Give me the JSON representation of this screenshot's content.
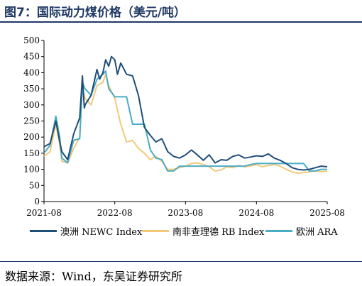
{
  "figure": {
    "title": "图7：国际动力煤价格（美元/吨）",
    "source": "数据来源：Wind，东吴证券研究所"
  },
  "chart_data": {
    "type": "line",
    "x_ticks": [
      "2021-08",
      "2022-08",
      "2023-08",
      "2024-08",
      "2025-08"
    ],
    "y_ticks": [
      0,
      50,
      100,
      150,
      200,
      250,
      300,
      350,
      400,
      450,
      500
    ],
    "ylim": [
      0,
      500
    ],
    "xlim": [
      "2021-08",
      "2025-08"
    ],
    "grid": false,
    "legend_position": "bottom",
    "series": [
      {
        "name": "澳洲 NEWC Index",
        "color": "#1f4e79",
        "points": [
          [
            "2021-08",
            170
          ],
          [
            "2021-09",
            180
          ],
          [
            "2021-10",
            250
          ],
          [
            "2021-10-20",
            190
          ],
          [
            "2021-11",
            155
          ],
          [
            "2021-12",
            130
          ],
          [
            "2022-01",
            210
          ],
          [
            "2022-02",
            260
          ],
          [
            "2022-02-15",
            390
          ],
          [
            "2022-02-25",
            290
          ],
          [
            "2022-03",
            300
          ],
          [
            "2022-04",
            330
          ],
          [
            "2022-05",
            410
          ],
          [
            "2022-05-15",
            380
          ],
          [
            "2022-06",
            400
          ],
          [
            "2022-06-15",
            440
          ],
          [
            "2022-07",
            420
          ],
          [
            "2022-07-15",
            450
          ],
          [
            "2022-08",
            440
          ],
          [
            "2022-08-15",
            395
          ],
          [
            "2022-09",
            430
          ],
          [
            "2022-10",
            395
          ],
          [
            "2022-11",
            390
          ],
          [
            "2022-12",
            330
          ],
          [
            "2023-01",
            230
          ],
          [
            "2023-02",
            205
          ],
          [
            "2023-03",
            185
          ],
          [
            "2023-04",
            195
          ],
          [
            "2023-05",
            155
          ],
          [
            "2023-06",
            140
          ],
          [
            "2023-07",
            135
          ],
          [
            "2023-08",
            145
          ],
          [
            "2023-09",
            160
          ],
          [
            "2023-10",
            145
          ],
          [
            "2023-11",
            128
          ],
          [
            "2023-12",
            145
          ],
          [
            "2024-01",
            120
          ],
          [
            "2024-02",
            130
          ],
          [
            "2024-03",
            128
          ],
          [
            "2024-04",
            140
          ],
          [
            "2024-05",
            145
          ],
          [
            "2024-06",
            135
          ],
          [
            "2024-07",
            138
          ],
          [
            "2024-08",
            142
          ],
          [
            "2024-09",
            140
          ],
          [
            "2024-10",
            148
          ],
          [
            "2024-11",
            135
          ],
          [
            "2024-12",
            128
          ],
          [
            "2025-01",
            118
          ],
          [
            "2025-02",
            105
          ],
          [
            "2025-03",
            100
          ],
          [
            "2025-04",
            98
          ],
          [
            "2025-05",
            100
          ],
          [
            "2025-06",
            105
          ],
          [
            "2025-07",
            110
          ],
          [
            "2025-08",
            108
          ]
        ]
      },
      {
        "name": "南非查理德 RB Index",
        "color": "#f2c97a",
        "points": [
          [
            "2021-08",
            140
          ],
          [
            "2021-09",
            155
          ],
          [
            "2021-10",
            240
          ],
          [
            "2021-10-20",
            180
          ],
          [
            "2021-11",
            125
          ],
          [
            "2021-12",
            120
          ],
          [
            "2022-01",
            165
          ],
          [
            "2022-02",
            200
          ],
          [
            "2022-02-15",
            350
          ],
          [
            "2022-03",
            320
          ],
          [
            "2022-04",
            300
          ],
          [
            "2022-05",
            360
          ],
          [
            "2022-06",
            370
          ],
          [
            "2022-06-15",
            395
          ],
          [
            "2022-07",
            360
          ],
          [
            "2022-08",
            320
          ],
          [
            "2022-09",
            240
          ],
          [
            "2022-10",
            185
          ],
          [
            "2022-11",
            190
          ],
          [
            "2022-12",
            165
          ],
          [
            "2023-01",
            150
          ],
          [
            "2023-02",
            130
          ],
          [
            "2023-03",
            140
          ],
          [
            "2023-04",
            125
          ],
          [
            "2023-05",
            100
          ],
          [
            "2023-06",
            100
          ],
          [
            "2023-07",
            105
          ],
          [
            "2023-08",
            110
          ],
          [
            "2023-09",
            118
          ],
          [
            "2023-10",
            120
          ],
          [
            "2023-11",
            115
          ],
          [
            "2023-12",
            108
          ],
          [
            "2024-01",
            95
          ],
          [
            "2024-02",
            98
          ],
          [
            "2024-03",
            108
          ],
          [
            "2024-04",
            105
          ],
          [
            "2024-05",
            112
          ],
          [
            "2024-06",
            108
          ],
          [
            "2024-07",
            110
          ],
          [
            "2024-08",
            115
          ],
          [
            "2024-09",
            108
          ],
          [
            "2024-10",
            112
          ],
          [
            "2024-11",
            115
          ],
          [
            "2024-12",
            110
          ],
          [
            "2025-01",
            100
          ],
          [
            "2025-02",
            92
          ],
          [
            "2025-03",
            88
          ],
          [
            "2025-04",
            90
          ],
          [
            "2025-05",
            92
          ],
          [
            "2025-06",
            95
          ],
          [
            "2025-07",
            93
          ],
          [
            "2025-08",
            94
          ]
        ]
      },
      {
        "name": "欧洲 ARA",
        "color": "#4bacc6",
        "points": [
          [
            "2021-08",
            150
          ],
          [
            "2021-09",
            175
          ],
          [
            "2021-10",
            265
          ],
          [
            "2021-10-20",
            205
          ],
          [
            "2021-11",
            135
          ],
          [
            "2021-12",
            120
          ],
          [
            "2022-01",
            190
          ],
          [
            "2022-02",
            195
          ],
          [
            "2022-02-15",
            370
          ],
          [
            "2022-03",
            350
          ],
          [
            "2022-04",
            330
          ],
          [
            "2022-05",
            380
          ],
          [
            "2022-06",
            395
          ],
          [
            "2022-06-15",
            405
          ],
          [
            "2022-07",
            350
          ],
          [
            "2022-08",
            325
          ],
          [
            "2022-09",
            325
          ],
          [
            "2022-10",
            325
          ],
          [
            "2022-11",
            240
          ],
          [
            "2022-12",
            240
          ],
          [
            "2023-01",
            240
          ],
          [
            "2023-02",
            160
          ],
          [
            "2023-03",
            135
          ],
          [
            "2023-04",
            130
          ],
          [
            "2023-05",
            95
          ],
          [
            "2023-06",
            95
          ],
          [
            "2023-07",
            110
          ],
          [
            "2023-08",
            110
          ],
          [
            "2023-09",
            110
          ],
          [
            "2023-10",
            110
          ],
          [
            "2023-11",
            110
          ],
          [
            "2023-12",
            110
          ],
          [
            "2024-01",
            110
          ],
          [
            "2024-02",
            110
          ],
          [
            "2024-03",
            110
          ],
          [
            "2024-04",
            110
          ],
          [
            "2024-05",
            110
          ],
          [
            "2024-06",
            110
          ],
          [
            "2024-07",
            115
          ],
          [
            "2024-08",
            118
          ],
          [
            "2024-09",
            118
          ],
          [
            "2024-10",
            118
          ],
          [
            "2024-11",
            118
          ],
          [
            "2024-12",
            118
          ],
          [
            "2025-01",
            118
          ],
          [
            "2025-02",
            118
          ],
          [
            "2025-03",
            118
          ],
          [
            "2025-04",
            118
          ],
          [
            "2025-05",
            95
          ],
          [
            "2025-06",
            95
          ],
          [
            "2025-07",
            100
          ],
          [
            "2025-08",
            100
          ]
        ]
      }
    ]
  }
}
